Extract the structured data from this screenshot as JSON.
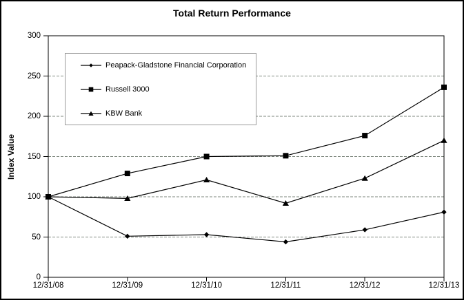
{
  "chart_data": {
    "type": "line",
    "title": "Total Return Performance",
    "xlabel": "",
    "ylabel": "Index Value",
    "ylim": [
      0,
      300
    ],
    "yticks": [
      0,
      50,
      100,
      150,
      200,
      250,
      300
    ],
    "categories": [
      "12/31/08",
      "12/31/09",
      "12/31/10",
      "12/31/11",
      "12/31/12",
      "12/31/13"
    ],
    "series": [
      {
        "name": "Peapack-Gladstone Financial Corporation",
        "marker": "diamond",
        "values": [
          100,
          51,
          53,
          44,
          59,
          81
        ]
      },
      {
        "name": "Russell 3000",
        "marker": "square",
        "values": [
          100,
          129,
          150,
          151,
          176,
          236
        ]
      },
      {
        "name": "KBW Bank",
        "marker": "triangle",
        "values": [
          100,
          98,
          121,
          92,
          123,
          170
        ]
      }
    ],
    "legend_position": "upper-left-inside",
    "grid": "horizontal-dashed",
    "colors": {
      "series": "#000000",
      "axis": "#000000",
      "gridline": "#7d877d",
      "legend_border": "#999999",
      "background": "#ffffff"
    }
  }
}
